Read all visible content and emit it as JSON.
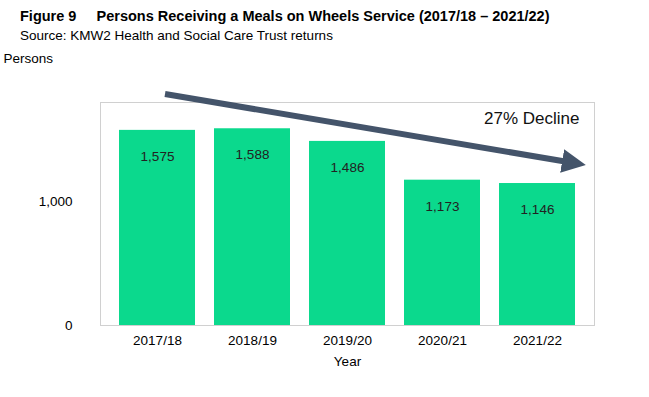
{
  "chart_data": {
    "type": "bar",
    "title": "Figure 9     Persons Receiving a Meals on Wheels Service (2017/18 – 2021/22)",
    "subtitle": "Source: KMW2 Health and Social Care Trust returns",
    "x_label": "Year",
    "y_label": "Persons",
    "annotation": "27% Decline",
    "categories": [
      "2017/18",
      "2018/19",
      "2019/20",
      "2020/21",
      "2021/22"
    ],
    "values": [
      1575,
      1588,
      1486,
      1173,
      1146
    ],
    "value_labels": [
      "1,575",
      "1,588",
      "1,486",
      "1,173",
      "1,146"
    ],
    "color": "#0bd98d",
    "ylim": [
      0,
      1800
    ],
    "yticks": [
      0,
      {
        "value": 1000,
        "label": "1,000"
      }
    ],
    "grid": false,
    "data_labels": true
  }
}
